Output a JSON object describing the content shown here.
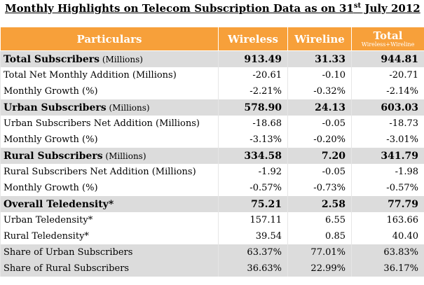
{
  "title": {
    "prefix": "Monthly Highlights on Telecom Subscription Data as on 31",
    "sup": "st",
    "suffix": " July 2012"
  },
  "columns": {
    "particulars": "Particulars",
    "wireless": "Wireless",
    "wireline": "Wireline",
    "total": "Total",
    "total_sub": "Wireless+Wireline"
  },
  "rows": [
    {
      "label": "Total Subscribers",
      "unit": " (Millions)",
      "wireless": "913.49",
      "wireline": "31.33",
      "total": "944.81"
    },
    {
      "label": "Total Net Monthly Addition",
      "unit": " (Millions)",
      "wireless": "-20.61",
      "wireline": "-0.10",
      "total": "-20.71"
    },
    {
      "label": "Monthly Growth",
      "unit": " (%)",
      "wireless": "-2.21%",
      "wireline": "-0.32%",
      "total": "-2.14%"
    },
    {
      "label": "Urban Subscribers",
      "unit": " (Millions)",
      "wireless": "578.90",
      "wireline": "24.13",
      "total": "603.03"
    },
    {
      "label": "Urban Subscribers Net Addition",
      "unit": " (Millions)",
      "wireless": "-18.68",
      "wireline": "-0.05",
      "total": "-18.73"
    },
    {
      "label": "Monthly Growth",
      "unit": " (%)",
      "wireless": "-3.13%",
      "wireline": "-0.20%",
      "total": "-3.01%"
    },
    {
      "label": "Rural Subscribers",
      "unit": " (Millions)",
      "wireless": "334.58",
      "wireline": "7.20",
      "total": "341.79"
    },
    {
      "label": "Rural Subscribers Net Addition",
      "unit": " (Millions)",
      "wireless": "-1.92",
      "wireline": "-0.05",
      "total": "-1.98"
    },
    {
      "label": "Monthly Growth",
      "unit": " (%)",
      "wireless": "-0.57%",
      "wireline": "-0.73%",
      "total": "-0.57%"
    },
    {
      "label": "Overall Teledensity*",
      "unit": "",
      "wireless": "75.21",
      "wireline": "2.58",
      "total": "77.79"
    },
    {
      "label": "Urban Teledensity*",
      "unit": "",
      "wireless": "157.11",
      "wireline": "6.55",
      "total": "163.66"
    },
    {
      "label": "Rural Teledensity*",
      "unit": "",
      "wireless": "39.54",
      "wireline": "0.85",
      "total": "40.40"
    },
    {
      "label": "Share of Urban Subscribers",
      "unit": "",
      "wireless": "63.37%",
      "wireline": "77.01%",
      "total": "63.83%"
    },
    {
      "label": "Share of Rural Subscribers",
      "unit": "",
      "wireless": "36.63%",
      "wireline": "22.99%",
      "total": "36.17%"
    }
  ]
}
